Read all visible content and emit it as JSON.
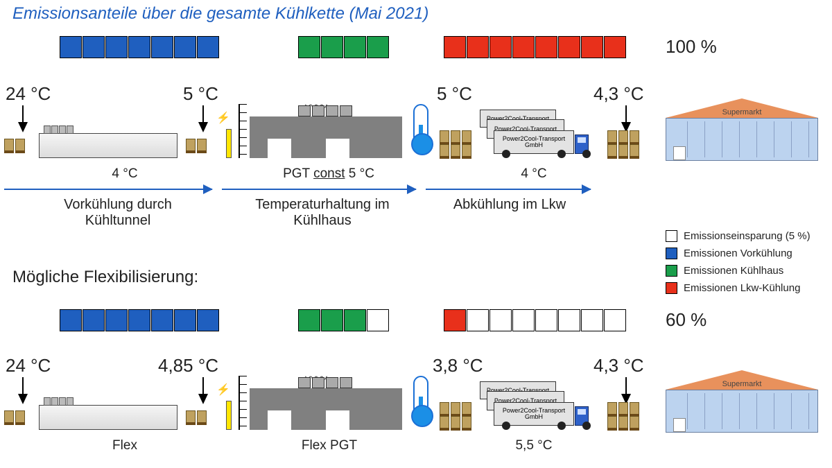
{
  "title": {
    "text": "Emissionsanteile über die gesamte Kühlkette (Mai 2021)",
    "color": "#1f5fbf",
    "fontsize": 24
  },
  "colors": {
    "precool": "#1f5fbf",
    "coldhouse": "#1a9e4b",
    "truck": "#e8301b",
    "savings_border": "#000000",
    "arrow": "#1f5fbf"
  },
  "top": {
    "blocks": {
      "precool": 7,
      "coldhouse": 4,
      "truck": 8,
      "savings": 0
    },
    "percent_label": "100 %",
    "temps": {
      "precool_in": "24 °C",
      "precool_out": "5 °C",
      "truck_in": "5 °C",
      "truck_out": "4,3 °C"
    },
    "stage_temps": {
      "precool": "4 °C",
      "coldhouse": "PGT const 5 °C",
      "truck": "4 °C"
    },
    "stage_labels": {
      "precool": "Vorkühlung durch\nKühltunnel",
      "coldhouse": "Temperaturhaltung im\nKühlhaus",
      "truck": "Abkühlung im Lkw"
    }
  },
  "flex_title": "Mögliche Flexibilisierung:",
  "bottom": {
    "blocks": {
      "precool": 7,
      "coldhouse_filled": 3,
      "coldhouse_empty": 1,
      "truck_filled": 1,
      "truck_empty": 7
    },
    "percent_label": "60 %",
    "temps": {
      "precool_in": "24 °C",
      "precool_out": "4,85 °C",
      "truck_in": "3,8 °C",
      "truck_out": "4,3 °C"
    },
    "stage_temps": {
      "precool": "Flex",
      "coldhouse": "Flex PGT",
      "truck": "5,5 °C"
    }
  },
  "legend": {
    "savings": "Emissionseinsparung (5 %)",
    "precool": "Emissionen Vorkühlung",
    "coldhouse": "Emissionen Kühlhaus",
    "truck": "Emissionen Lkw-Kühlung"
  },
  "supermarket_label": "Supermarkt",
  "truck_label": {
    "line1": "Power2Cool-Transport",
    "line2": "GmbH"
  }
}
